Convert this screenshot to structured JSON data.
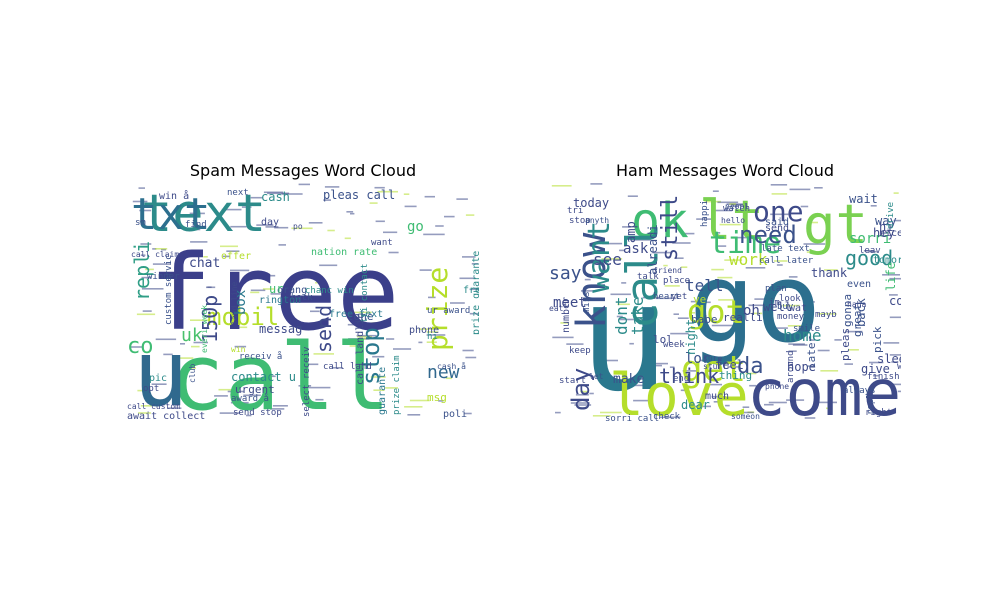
{
  "figure": {
    "panels": [
      {
        "title": "Spam Messages Word Cloud",
        "words": [
          {
            "text": "free",
            "color": "#3b3f8a"
          },
          {
            "text": "text",
            "color": "#2c8b8a"
          },
          {
            "text": "call",
            "color": "#3fbc73"
          },
          {
            "text": "u",
            "color": "#30698e"
          },
          {
            "text": "txt",
            "color": "#2c6f8e"
          },
          {
            "text": "mobil",
            "color": "#b5de2b"
          },
          {
            "text": "prize",
            "color": "#b5de2b"
          },
          {
            "text": "stop",
            "color": "#2a788e"
          },
          {
            "text": "send",
            "color": "#3e4a89"
          },
          {
            "text": "new",
            "color": "#31688e"
          },
          {
            "text": "repli",
            "color": "#2f9e86"
          },
          {
            "text": "uk",
            "color": "#4ac16d"
          },
          {
            "text": "co",
            "color": "#3fbc73"
          },
          {
            "text": "150p",
            "color": "#3e4a89"
          },
          {
            "text": "box",
            "color": "#2a788e"
          },
          {
            "text": "cash",
            "color": "#2c8b8a"
          },
          {
            "text": "pleas call",
            "color": "#3b528b"
          },
          {
            "text": "chat",
            "color": "#3e4a89"
          },
          {
            "text": "messag",
            "color": "#3e4a89"
          },
          {
            "text": "contact u",
            "color": "#2c8b8a"
          },
          {
            "text": "tone",
            "color": "#3b528b"
          },
          {
            "text": "rington",
            "color": "#2a788e"
          },
          {
            "text": "orang",
            "color": "#3b528b"
          },
          {
            "text": "chanc win",
            "color": "#2c8b8a"
          },
          {
            "text": "phone",
            "color": "#3e4a89"
          },
          {
            "text": "go",
            "color": "#3fbc73"
          },
          {
            "text": "guarante",
            "color": "#2a788e"
          },
          {
            "text": "urgent",
            "color": "#3e4a89"
          },
          {
            "text": "tri contact",
            "color": "#2c8b8a"
          },
          {
            "text": "nation rate",
            "color": "#3fbc73"
          },
          {
            "text": "custom servic",
            "color": "#3b528b"
          },
          {
            "text": "await collect",
            "color": "#3e4a89"
          },
          {
            "text": "call land",
            "color": "#3e4a89"
          },
          {
            "text": "call landlin",
            "color": "#3e4a89"
          },
          {
            "text": "free text",
            "color": "#2a788e"
          },
          {
            "text": "ur award",
            "color": "#3b528b"
          },
          {
            "text": "award å",
            "color": "#3b528b"
          },
          {
            "text": "receiv å",
            "color": "#3b528b"
          },
          {
            "text": "day",
            "color": "#3e4a89"
          },
          {
            "text": "want",
            "color": "#3e4a89"
          },
          {
            "text": "win å",
            "color": "#3e4a89"
          },
          {
            "text": "next",
            "color": "#3b528b"
          },
          {
            "text": "find",
            "color": "#3b528b"
          },
          {
            "text": "sm",
            "color": "#3b528b"
          },
          {
            "text": "call claim",
            "color": "#3e4a89"
          },
          {
            "text": "winner",
            "color": "#3b528b"
          },
          {
            "text": "pic",
            "color": "#2c8b8a"
          },
          {
            "text": "opt",
            "color": "#3e4a89"
          },
          {
            "text": "poli",
            "color": "#3b528b"
          },
          {
            "text": "msg",
            "color": "#b5de2b"
          },
          {
            "text": "cash å",
            "color": "#3b528b"
          },
          {
            "text": "send stop",
            "color": "#3e4a89"
          },
          {
            "text": "call custom",
            "color": "#3e4a89"
          },
          {
            "text": "offer",
            "color": "#b5de2b"
          },
          {
            "text": "back",
            "color": "#3b528b"
          },
          {
            "text": "select receiv",
            "color": "#3e4a89"
          },
          {
            "text": "prize claim",
            "color": "#2c8b8a"
          },
          {
            "text": "prize guarante",
            "color": "#2c8b8a"
          },
          {
            "text": "free entri",
            "color": "#2c8b8a"
          },
          {
            "text": "hi",
            "color": "#2c8b8a"
          },
          {
            "text": "ur",
            "color": "#3fbc73"
          },
          {
            "text": "win",
            "color": "#b5de2b"
          },
          {
            "text": "land line",
            "color": "#3e4a89"
          },
          {
            "text": "po",
            "color": "#3e4a89"
          },
          {
            "text": "club",
            "color": "#3b528b"
          },
          {
            "text": "everi week",
            "color": "#3fbc73"
          },
          {
            "text": "urgent mobil",
            "color": "#b5de2b"
          }
        ]
      },
      {
        "title": "Ham Messages Word Cloud",
        "words": [
          {
            "text": "u",
            "color": "#2a788e"
          },
          {
            "text": "go",
            "color": "#2c6f8e"
          },
          {
            "text": "gt",
            "color": "#7ad151"
          },
          {
            "text": "lt",
            "color": "#7ad151"
          },
          {
            "text": "ok",
            "color": "#3fbc73"
          },
          {
            "text": "come",
            "color": "#3e4a89"
          },
          {
            "text": "love",
            "color": "#b5de2b"
          },
          {
            "text": "call",
            "color": "#2c8b8a"
          },
          {
            "text": "time",
            "color": "#3fbc73"
          },
          {
            "text": "know",
            "color": "#3b528b"
          },
          {
            "text": "one",
            "color": "#3e4a89"
          },
          {
            "text": "need",
            "color": "#3b528b"
          },
          {
            "text": "want",
            "color": "#2c8b8a"
          },
          {
            "text": "get",
            "color": "#b5de2b"
          },
          {
            "text": "got",
            "color": "#b5de2b"
          },
          {
            "text": "day",
            "color": "#3e4a89"
          },
          {
            "text": "still",
            "color": "#3e4a89"
          },
          {
            "text": "good",
            "color": "#2c8b8a"
          },
          {
            "text": "work",
            "color": "#b5de2b"
          },
          {
            "text": "tell",
            "color": "#3b528b"
          },
          {
            "text": "think",
            "color": "#3e4a89"
          },
          {
            "text": "da",
            "color": "#3b528b"
          },
          {
            "text": "home",
            "color": "#2c8b8a"
          },
          {
            "text": "say",
            "color": "#3b528b"
          },
          {
            "text": "see",
            "color": "#3e4a89"
          },
          {
            "text": "ask",
            "color": "#3e4a89"
          },
          {
            "text": "today",
            "color": "#3e4a89"
          },
          {
            "text": "meet",
            "color": "#3e4a89"
          },
          {
            "text": "dont",
            "color": "#2c8b8a"
          },
          {
            "text": "take",
            "color": "#2c8b8a"
          },
          {
            "text": "sorri",
            "color": "#3fbc73"
          },
          {
            "text": "hey",
            "color": "#3e4a89"
          },
          {
            "text": "way",
            "color": "#3b528b"
          },
          {
            "text": "hi",
            "color": "#3e4a89"
          },
          {
            "text": "make",
            "color": "#3b528b"
          },
          {
            "text": "lor",
            "color": "#3b528b"
          },
          {
            "text": "oh",
            "color": "#3e4a89"
          },
          {
            "text": "back",
            "color": "#3b528b"
          },
          {
            "text": "feel",
            "color": "#3e4a89"
          },
          {
            "text": "hope",
            "color": "#3e4a89"
          },
          {
            "text": "thank",
            "color": "#3e4a89"
          },
          {
            "text": "well",
            "color": "#3e4a89"
          },
          {
            "text": "send",
            "color": "#3e4a89"
          },
          {
            "text": "wait",
            "color": "#3b528b"
          },
          {
            "text": "said",
            "color": "#3b528b"
          },
          {
            "text": "amp",
            "color": "#3e4a89"
          },
          {
            "text": "alreadi",
            "color": "#3b528b"
          },
          {
            "text": "realli",
            "color": "#3e4a89"
          },
          {
            "text": "thing",
            "color": "#2c8b8a"
          },
          {
            "text": "much",
            "color": "#3e4a89"
          },
          {
            "text": "dear",
            "color": "#2c8b8a"
          },
          {
            "text": "lol",
            "color": "#3e4a89"
          },
          {
            "text": "ye",
            "color": "#b5de2b"
          },
          {
            "text": "babe",
            "color": "#3b528b"
          },
          {
            "text": "leav",
            "color": "#3e4a89"
          },
          {
            "text": "tomorrow",
            "color": "#2c8b8a"
          },
          {
            "text": "pick",
            "color": "#3b528b"
          },
          {
            "text": "give",
            "color": "#3e4a89"
          },
          {
            "text": "great",
            "color": "#3b528b"
          },
          {
            "text": "life",
            "color": "#3fbc73"
          },
          {
            "text": "night",
            "color": "#2c8b8a"
          },
          {
            "text": "later",
            "color": "#3b528b"
          },
          {
            "text": "gonna",
            "color": "#3b528b"
          },
          {
            "text": "pleas",
            "color": "#3e4a89"
          },
          {
            "text": "sleep",
            "color": "#3e4a89"
          },
          {
            "text": "word",
            "color": "#3e4a89"
          },
          {
            "text": "even",
            "color": "#3b528b"
          },
          {
            "text": "co",
            "color": "#3e4a89"
          },
          {
            "text": "nice",
            "color": "#3e4a89"
          },
          {
            "text": "late text",
            "color": "#3b528b"
          },
          {
            "text": "call later",
            "color": "#3b528b"
          },
          {
            "text": "stop",
            "color": "#3e4a89"
          },
          {
            "text": "im",
            "color": "#3e4a89"
          },
          {
            "text": "plan",
            "color": "#3b528b"
          },
          {
            "text": "look",
            "color": "#3e4a89"
          },
          {
            "text": "buy",
            "color": "#3b528b"
          },
          {
            "text": "money",
            "color": "#3e4a89"
          },
          {
            "text": "number",
            "color": "#3e4a89"
          },
          {
            "text": "keep",
            "color": "#3e4a89"
          },
          {
            "text": "friend",
            "color": "#3e4a89"
          },
          {
            "text": "place",
            "color": "#3e4a89"
          },
          {
            "text": "happi",
            "color": "#3b528b"
          },
          {
            "text": "watch",
            "color": "#3e4a89"
          },
          {
            "text": "hello",
            "color": "#3e4a89"
          },
          {
            "text": "peopl",
            "color": "#3b528b"
          },
          {
            "text": "mayb",
            "color": "#3e4a89"
          },
          {
            "text": "haha",
            "color": "#3e4a89"
          },
          {
            "text": "smile",
            "color": "#3b528b"
          },
          {
            "text": "finish",
            "color": "#3e4a89"
          },
          {
            "text": "right",
            "color": "#3e4a89"
          },
          {
            "text": "always",
            "color": "#3b528b"
          },
          {
            "text": "talk",
            "color": "#3e4a89"
          },
          {
            "text": "end",
            "color": "#3e4a89"
          },
          {
            "text": "let",
            "color": "#3b528b"
          },
          {
            "text": "yet",
            "color": "#3e4a89"
          },
          {
            "text": "check",
            "color": "#3b528b"
          },
          {
            "text": "sorri call",
            "color": "#3b528b"
          },
          {
            "text": "someon",
            "color": "#3b528b"
          },
          {
            "text": "phone",
            "color": "#3e4a89"
          },
          {
            "text": "stuff",
            "color": "#3e4a89"
          },
          {
            "text": "sure",
            "color": "#3b528b"
          },
          {
            "text": "drive",
            "color": "#2c8b8a"
          },
          {
            "text": "tri",
            "color": "#3e4a89"
          },
          {
            "text": "eat",
            "color": "#3e4a89"
          },
          {
            "text": "miss",
            "color": "#3b528b"
          },
          {
            "text": "week",
            "color": "#3e4a89"
          },
          {
            "text": "start",
            "color": "#3e4a89"
          },
          {
            "text": "anyth",
            "color": "#3b528b"
          },
          {
            "text": "around",
            "color": "#3e4a89"
          },
          {
            "text": "heart",
            "color": "#3b528b"
          },
          {
            "text": "repli",
            "color": "#3b528b"
          },
          {
            "text": "wat",
            "color": "#3e4a89"
          }
        ]
      }
    ]
  }
}
